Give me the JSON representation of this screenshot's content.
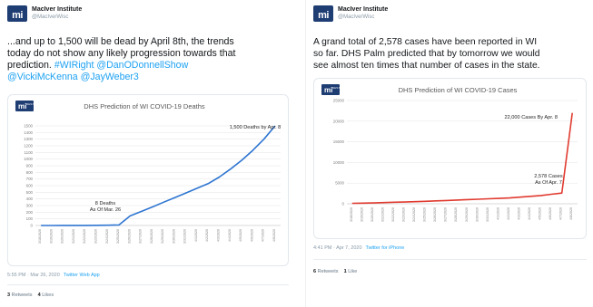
{
  "tweet_left": {
    "author": {
      "name": "MacIver Institute",
      "handle": "@MacIverWisc",
      "logo_text": "mi"
    },
    "text_lines": [
      "...and up to 1,500 will be dead by April 8th, the trends",
      "today do not show any likely progression towards that",
      "prediction."
    ],
    "hashtag": "#WIRight",
    "mentions_line1": "@DanODonnellShow",
    "mentions_line2": "@VickiMcKenna @JayWeber3",
    "chart_logo": "mi",
    "chart_logo_sub": "DHS Model",
    "chart_data": {
      "type": "line",
      "title": "DHS Prediction of WI COVID-19 Deaths",
      "categories": [
        "3/18/2020",
        "3/19/2020",
        "3/20/2020",
        "3/21/2020",
        "3/22/2020",
        "3/23/2020",
        "3/24/2020",
        "3/25/2020",
        "3/26/2020",
        "3/27/2020",
        "3/28/2020",
        "3/29/2020",
        "3/30/2020",
        "3/31/2020",
        "4/1/2020",
        "4/2/2020",
        "4/3/2020",
        "4/4/2020",
        "4/5/2020",
        "4/6/2020",
        "4/7/2020",
        "4/8/2020"
      ],
      "values": [
        0,
        0,
        1,
        1,
        2,
        3,
        4,
        8,
        145,
        212,
        280,
        350,
        420,
        490,
        560,
        630,
        730,
        850,
        980,
        1130,
        1300,
        1500
      ],
      "yticks": [
        0,
        100,
        200,
        300,
        400,
        500,
        600,
        700,
        800,
        900,
        1000,
        1100,
        1200,
        1300,
        1400,
        1500
      ],
      "ytick_labels": [
        "0",
        "100",
        "200",
        "300",
        "400",
        "500",
        "600",
        "700",
        "800",
        "900",
        "1000",
        "1100",
        "1200",
        "1300",
        "1400",
        "1500"
      ],
      "ylim": [
        0,
        1500
      ],
      "annotations": [
        {
          "lines": [
            "8 Deaths",
            "As Of Mar. 26"
          ]
        },
        {
          "lines": [
            "1,500 Deaths by Apr. 8"
          ]
        }
      ],
      "color": "#2e75d1"
    },
    "meta_time": "5:55 PM · Mar 26, 2020",
    "meta_source": "Twitter Web App",
    "retweets_count": "3",
    "retweets_label": "Retweets",
    "likes_count": "4",
    "likes_label": "Likes"
  },
  "tweet_right": {
    "author": {
      "name": "MacIver Institute",
      "handle": "@MacIverWisc",
      "logo_text": "mi"
    },
    "text_lines": [
      "A grand total of 2,578 cases have been reported in WI",
      "so far. DHS Palm predicted that by tomorrow we would",
      "see almost ten times that number of cases in the state."
    ],
    "chart_logo": "mi",
    "chart_logo_sub": "DHS Model",
    "chart_data": {
      "type": "line",
      "title": "DHS Prediction of WI COVID-19 Cases",
      "categories": [
        "3/18/2020",
        "3/19/2020",
        "3/20/2020",
        "3/21/2020",
        "3/22/2020",
        "3/23/2020",
        "3/24/2020",
        "3/25/2020",
        "3/26/2020",
        "3/27/2020",
        "3/28/2020",
        "3/29/2020",
        "3/30/2020",
        "3/31/2020",
        "4/1/2020",
        "4/2/2020",
        "4/3/2020",
        "4/4/2020",
        "4/5/2020",
        "4/6/2020",
        "4/7/2020",
        "4/8/2020"
      ],
      "values": [
        100,
        150,
        200,
        280,
        380,
        420,
        500,
        600,
        700,
        800,
        900,
        1000,
        1100,
        1200,
        1300,
        1400,
        1600,
        1800,
        2000,
        2300,
        2578,
        22000
      ],
      "yticks": [
        0,
        5000,
        10000,
        15000,
        20000,
        25000
      ],
      "ytick_labels": [
        "0",
        "5000",
        "10000",
        "15000",
        "20000",
        "25000"
      ],
      "ylim": [
        0,
        25000
      ],
      "annotations": [
        {
          "lines": [
            "22,000 Cases By Apr. 8"
          ]
        },
        {
          "lines": [
            "2,578 Cases",
            "As Of Apr. 7"
          ]
        }
      ],
      "color": "#e03a2f"
    },
    "meta_time": "4:41 PM · Apr 7, 2020",
    "meta_source": "Twitter for iPhone",
    "retweets_count": "6",
    "retweets_label": "Retweets",
    "likes_count": "1",
    "likes_label": "Like"
  }
}
